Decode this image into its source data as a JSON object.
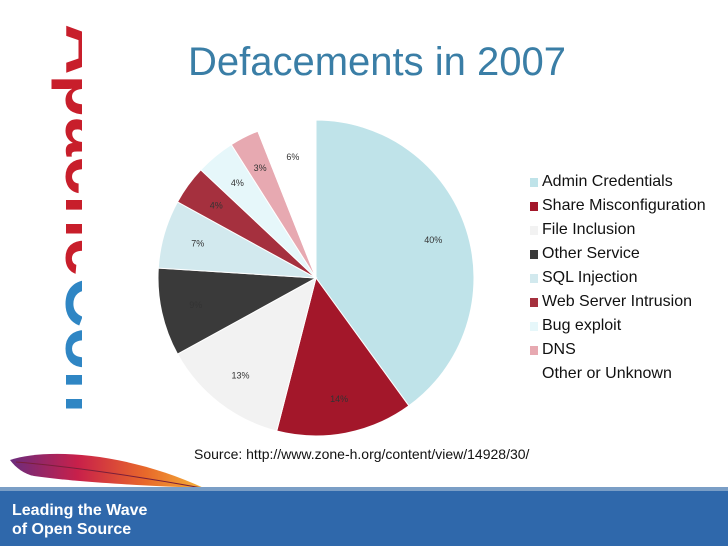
{
  "slide": {
    "title": "Defacements in 2007",
    "source": "Source: http://www.zone-h.org/content/view/14928/30/",
    "footer_line1": "Leading the Wave",
    "footer_line2": "of Open Source",
    "logo_text": "ApacheCon",
    "colors": {
      "title": "#3a7ea6",
      "footer": "#2f68ab",
      "logo_red": "#c81e2b",
      "logo_blue": "#2f86c4"
    }
  },
  "chart_data": {
    "type": "pie",
    "title": "Defacements in 2007",
    "categories": [
      "Admin Credentials",
      "Share Misconfiguration",
      "File Inclusion",
      "Other Service",
      "SQL Injection",
      "Web Server Intrusion",
      "Bug exploit",
      "DNS",
      "Other or Unknown"
    ],
    "values": [
      40,
      14,
      13,
      9,
      7,
      4,
      4,
      3,
      6
    ],
    "labels": [
      "40%",
      "14%",
      "13%",
      "9%",
      "7%",
      "4%",
      "4%",
      "3%",
      "6%"
    ],
    "colors": [
      "#bfe3e9",
      "#a3172a",
      "#f2f2f2",
      "#3a3a3a",
      "#d2e9ee",
      "#a5303e",
      "#e6f7fa",
      "#e7a9b1",
      "#ffffff"
    ],
    "legend_position": "right",
    "start_angle": "12 o'clock, clockwise"
  }
}
